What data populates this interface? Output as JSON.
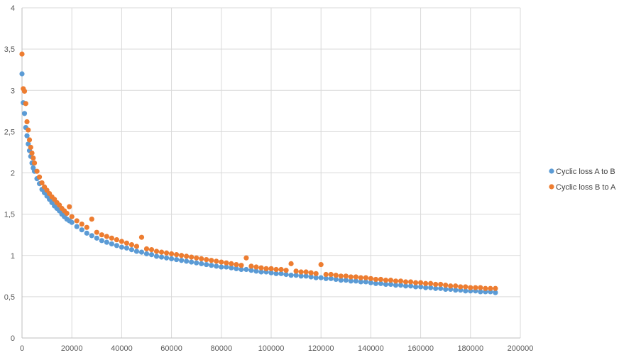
{
  "chart_data": {
    "type": "scatter",
    "title": "",
    "xlabel": "",
    "ylabel": "",
    "xlim": [
      0,
      200000
    ],
    "ylim": [
      0,
      4
    ],
    "x_ticks": [
      0,
      20000,
      40000,
      60000,
      80000,
      100000,
      120000,
      140000,
      160000,
      180000,
      200000
    ],
    "x_tick_labels": [
      "0",
      "20000",
      "40000",
      "60000",
      "80000",
      "100000",
      "120000",
      "140000",
      "160000",
      "180000",
      "200000"
    ],
    "y_ticks": [
      0,
      0.5,
      1,
      1.5,
      2,
      2.5,
      3,
      3.5,
      4
    ],
    "y_tick_labels": [
      "0",
      "0,5",
      "1",
      "1,5",
      "2",
      "2,5",
      "3",
      "3,5",
      "4"
    ],
    "grid": true,
    "legend_position": "right",
    "series": [
      {
        "name": "Cyclic loss A to B",
        "color": "#5b9bd5",
        "points": [
          [
            0,
            3.2
          ],
          [
            500,
            2.85
          ],
          [
            1000,
            2.72
          ],
          [
            1500,
            2.55
          ],
          [
            2000,
            2.45
          ],
          [
            2500,
            2.35
          ],
          [
            3000,
            2.27
          ],
          [
            3500,
            2.2
          ],
          [
            4000,
            2.12
          ],
          [
            4500,
            2.06
          ],
          [
            5000,
            2.02
          ],
          [
            6000,
            1.93
          ],
          [
            7000,
            1.87
          ],
          [
            8000,
            1.8
          ],
          [
            9000,
            1.76
          ],
          [
            10000,
            1.72
          ],
          [
            11000,
            1.68
          ],
          [
            12000,
            1.64
          ],
          [
            13000,
            1.6
          ],
          [
            14000,
            1.57
          ],
          [
            15000,
            1.54
          ],
          [
            16000,
            1.5
          ],
          [
            17000,
            1.47
          ],
          [
            18000,
            1.44
          ],
          [
            19000,
            1.42
          ],
          [
            20000,
            1.4
          ],
          [
            22000,
            1.35
          ],
          [
            24000,
            1.31
          ],
          [
            26000,
            1.27
          ],
          [
            28000,
            1.24
          ],
          [
            30000,
            1.21
          ],
          [
            32000,
            1.18
          ],
          [
            34000,
            1.16
          ],
          [
            36000,
            1.14
          ],
          [
            38000,
            1.12
          ],
          [
            40000,
            1.1
          ],
          [
            42000,
            1.09
          ],
          [
            44000,
            1.07
          ],
          [
            46000,
            1.05
          ],
          [
            48000,
            1.04
          ],
          [
            50000,
            1.02
          ],
          [
            52000,
            1.01
          ],
          [
            54000,
            0.99
          ],
          [
            56000,
            0.98
          ],
          [
            58000,
            0.97
          ],
          [
            60000,
            0.96
          ],
          [
            62000,
            0.95
          ],
          [
            64000,
            0.94
          ],
          [
            66000,
            0.93
          ],
          [
            68000,
            0.92
          ],
          [
            70000,
            0.91
          ],
          [
            72000,
            0.9
          ],
          [
            74000,
            0.89
          ],
          [
            76000,
            0.88
          ],
          [
            78000,
            0.87
          ],
          [
            80000,
            0.86
          ],
          [
            82000,
            0.86
          ],
          [
            84000,
            0.85
          ],
          [
            86000,
            0.84
          ],
          [
            88000,
            0.83
          ],
          [
            90000,
            0.83
          ],
          [
            92000,
            0.82
          ],
          [
            94000,
            0.81
          ],
          [
            96000,
            0.8
          ],
          [
            98000,
            0.8
          ],
          [
            100000,
            0.79
          ],
          [
            102000,
            0.78
          ],
          [
            104000,
            0.78
          ],
          [
            106000,
            0.77
          ],
          [
            108000,
            0.76
          ],
          [
            110000,
            0.76
          ],
          [
            112000,
            0.75
          ],
          [
            114000,
            0.75
          ],
          [
            116000,
            0.74
          ],
          [
            118000,
            0.73
          ],
          [
            120000,
            0.73
          ],
          [
            122000,
            0.72
          ],
          [
            124000,
            0.72
          ],
          [
            126000,
            0.71
          ],
          [
            128000,
            0.7
          ],
          [
            130000,
            0.7
          ],
          [
            132000,
            0.69
          ],
          [
            134000,
            0.69
          ],
          [
            136000,
            0.68
          ],
          [
            138000,
            0.68
          ],
          [
            140000,
            0.67
          ],
          [
            142000,
            0.66
          ],
          [
            144000,
            0.66
          ],
          [
            146000,
            0.65
          ],
          [
            148000,
            0.65
          ],
          [
            150000,
            0.64
          ],
          [
            152000,
            0.64
          ],
          [
            154000,
            0.63
          ],
          [
            156000,
            0.63
          ],
          [
            158000,
            0.62
          ],
          [
            160000,
            0.62
          ],
          [
            162000,
            0.61
          ],
          [
            164000,
            0.61
          ],
          [
            166000,
            0.6
          ],
          [
            168000,
            0.6
          ],
          [
            170000,
            0.59
          ],
          [
            172000,
            0.59
          ],
          [
            174000,
            0.58
          ],
          [
            176000,
            0.58
          ],
          [
            178000,
            0.57
          ],
          [
            180000,
            0.57
          ],
          [
            182000,
            0.57
          ],
          [
            184000,
            0.56
          ],
          [
            186000,
            0.56
          ],
          [
            188000,
            0.56
          ],
          [
            190000,
            0.55
          ]
        ]
      },
      {
        "name": "Cyclic loss B to A",
        "color": "#ed7d31",
        "points": [
          [
            0,
            3.44
          ],
          [
            500,
            3.02
          ],
          [
            1000,
            2.99
          ],
          [
            1500,
            2.84
          ],
          [
            2000,
            2.62
          ],
          [
            2500,
            2.52
          ],
          [
            3000,
            2.4
          ],
          [
            3500,
            2.31
          ],
          [
            4000,
            2.24
          ],
          [
            4500,
            2.18
          ],
          [
            5000,
            2.12
          ],
          [
            6000,
            2.02
          ],
          [
            7000,
            1.95
          ],
          [
            8000,
            1.88
          ],
          [
            9000,
            1.83
          ],
          [
            10000,
            1.79
          ],
          [
            11000,
            1.75
          ],
          [
            12000,
            1.71
          ],
          [
            13000,
            1.68
          ],
          [
            14000,
            1.64
          ],
          [
            15000,
            1.61
          ],
          [
            16000,
            1.57
          ],
          [
            17000,
            1.54
          ],
          [
            18000,
            1.51
          ],
          [
            19000,
            1.59
          ],
          [
            20000,
            1.47
          ],
          [
            22000,
            1.42
          ],
          [
            24000,
            1.38
          ],
          [
            26000,
            1.34
          ],
          [
            28000,
            1.44
          ],
          [
            30000,
            1.28
          ],
          [
            32000,
            1.25
          ],
          [
            34000,
            1.23
          ],
          [
            36000,
            1.21
          ],
          [
            38000,
            1.19
          ],
          [
            40000,
            1.17
          ],
          [
            42000,
            1.15
          ],
          [
            44000,
            1.13
          ],
          [
            46000,
            1.11
          ],
          [
            48000,
            1.22
          ],
          [
            50000,
            1.08
          ],
          [
            52000,
            1.07
          ],
          [
            54000,
            1.05
          ],
          [
            56000,
            1.04
          ],
          [
            58000,
            1.03
          ],
          [
            60000,
            1.02
          ],
          [
            62000,
            1.01
          ],
          [
            64000,
            1.0
          ],
          [
            66000,
            0.99
          ],
          [
            68000,
            0.98
          ],
          [
            70000,
            0.97
          ],
          [
            72000,
            0.96
          ],
          [
            74000,
            0.95
          ],
          [
            76000,
            0.94
          ],
          [
            78000,
            0.93
          ],
          [
            80000,
            0.92
          ],
          [
            82000,
            0.91
          ],
          [
            84000,
            0.9
          ],
          [
            86000,
            0.89
          ],
          [
            88000,
            0.88
          ],
          [
            90000,
            0.97
          ],
          [
            92000,
            0.87
          ],
          [
            94000,
            0.86
          ],
          [
            96000,
            0.85
          ],
          [
            98000,
            0.84
          ],
          [
            100000,
            0.84
          ],
          [
            102000,
            0.83
          ],
          [
            104000,
            0.83
          ],
          [
            106000,
            0.82
          ],
          [
            108000,
            0.9
          ],
          [
            110000,
            0.81
          ],
          [
            112000,
            0.8
          ],
          [
            114000,
            0.8
          ],
          [
            116000,
            0.79
          ],
          [
            118000,
            0.78
          ],
          [
            120000,
            0.89
          ],
          [
            122000,
            0.77
          ],
          [
            124000,
            0.77
          ],
          [
            126000,
            0.76
          ],
          [
            128000,
            0.75
          ],
          [
            130000,
            0.75
          ],
          [
            132000,
            0.74
          ],
          [
            134000,
            0.74
          ],
          [
            136000,
            0.73
          ],
          [
            138000,
            0.73
          ],
          [
            140000,
            0.72
          ],
          [
            142000,
            0.71
          ],
          [
            144000,
            0.71
          ],
          [
            146000,
            0.7
          ],
          [
            148000,
            0.7
          ],
          [
            150000,
            0.69
          ],
          [
            152000,
            0.69
          ],
          [
            154000,
            0.68
          ],
          [
            156000,
            0.68
          ],
          [
            158000,
            0.67
          ],
          [
            160000,
            0.67
          ],
          [
            162000,
            0.66
          ],
          [
            164000,
            0.66
          ],
          [
            166000,
            0.65
          ],
          [
            168000,
            0.65
          ],
          [
            170000,
            0.64
          ],
          [
            172000,
            0.63
          ],
          [
            174000,
            0.63
          ],
          [
            176000,
            0.62
          ],
          [
            178000,
            0.62
          ],
          [
            180000,
            0.61
          ],
          [
            182000,
            0.61
          ],
          [
            184000,
            0.61
          ],
          [
            186000,
            0.6
          ],
          [
            188000,
            0.6
          ],
          [
            190000,
            0.6
          ]
        ]
      }
    ]
  }
}
